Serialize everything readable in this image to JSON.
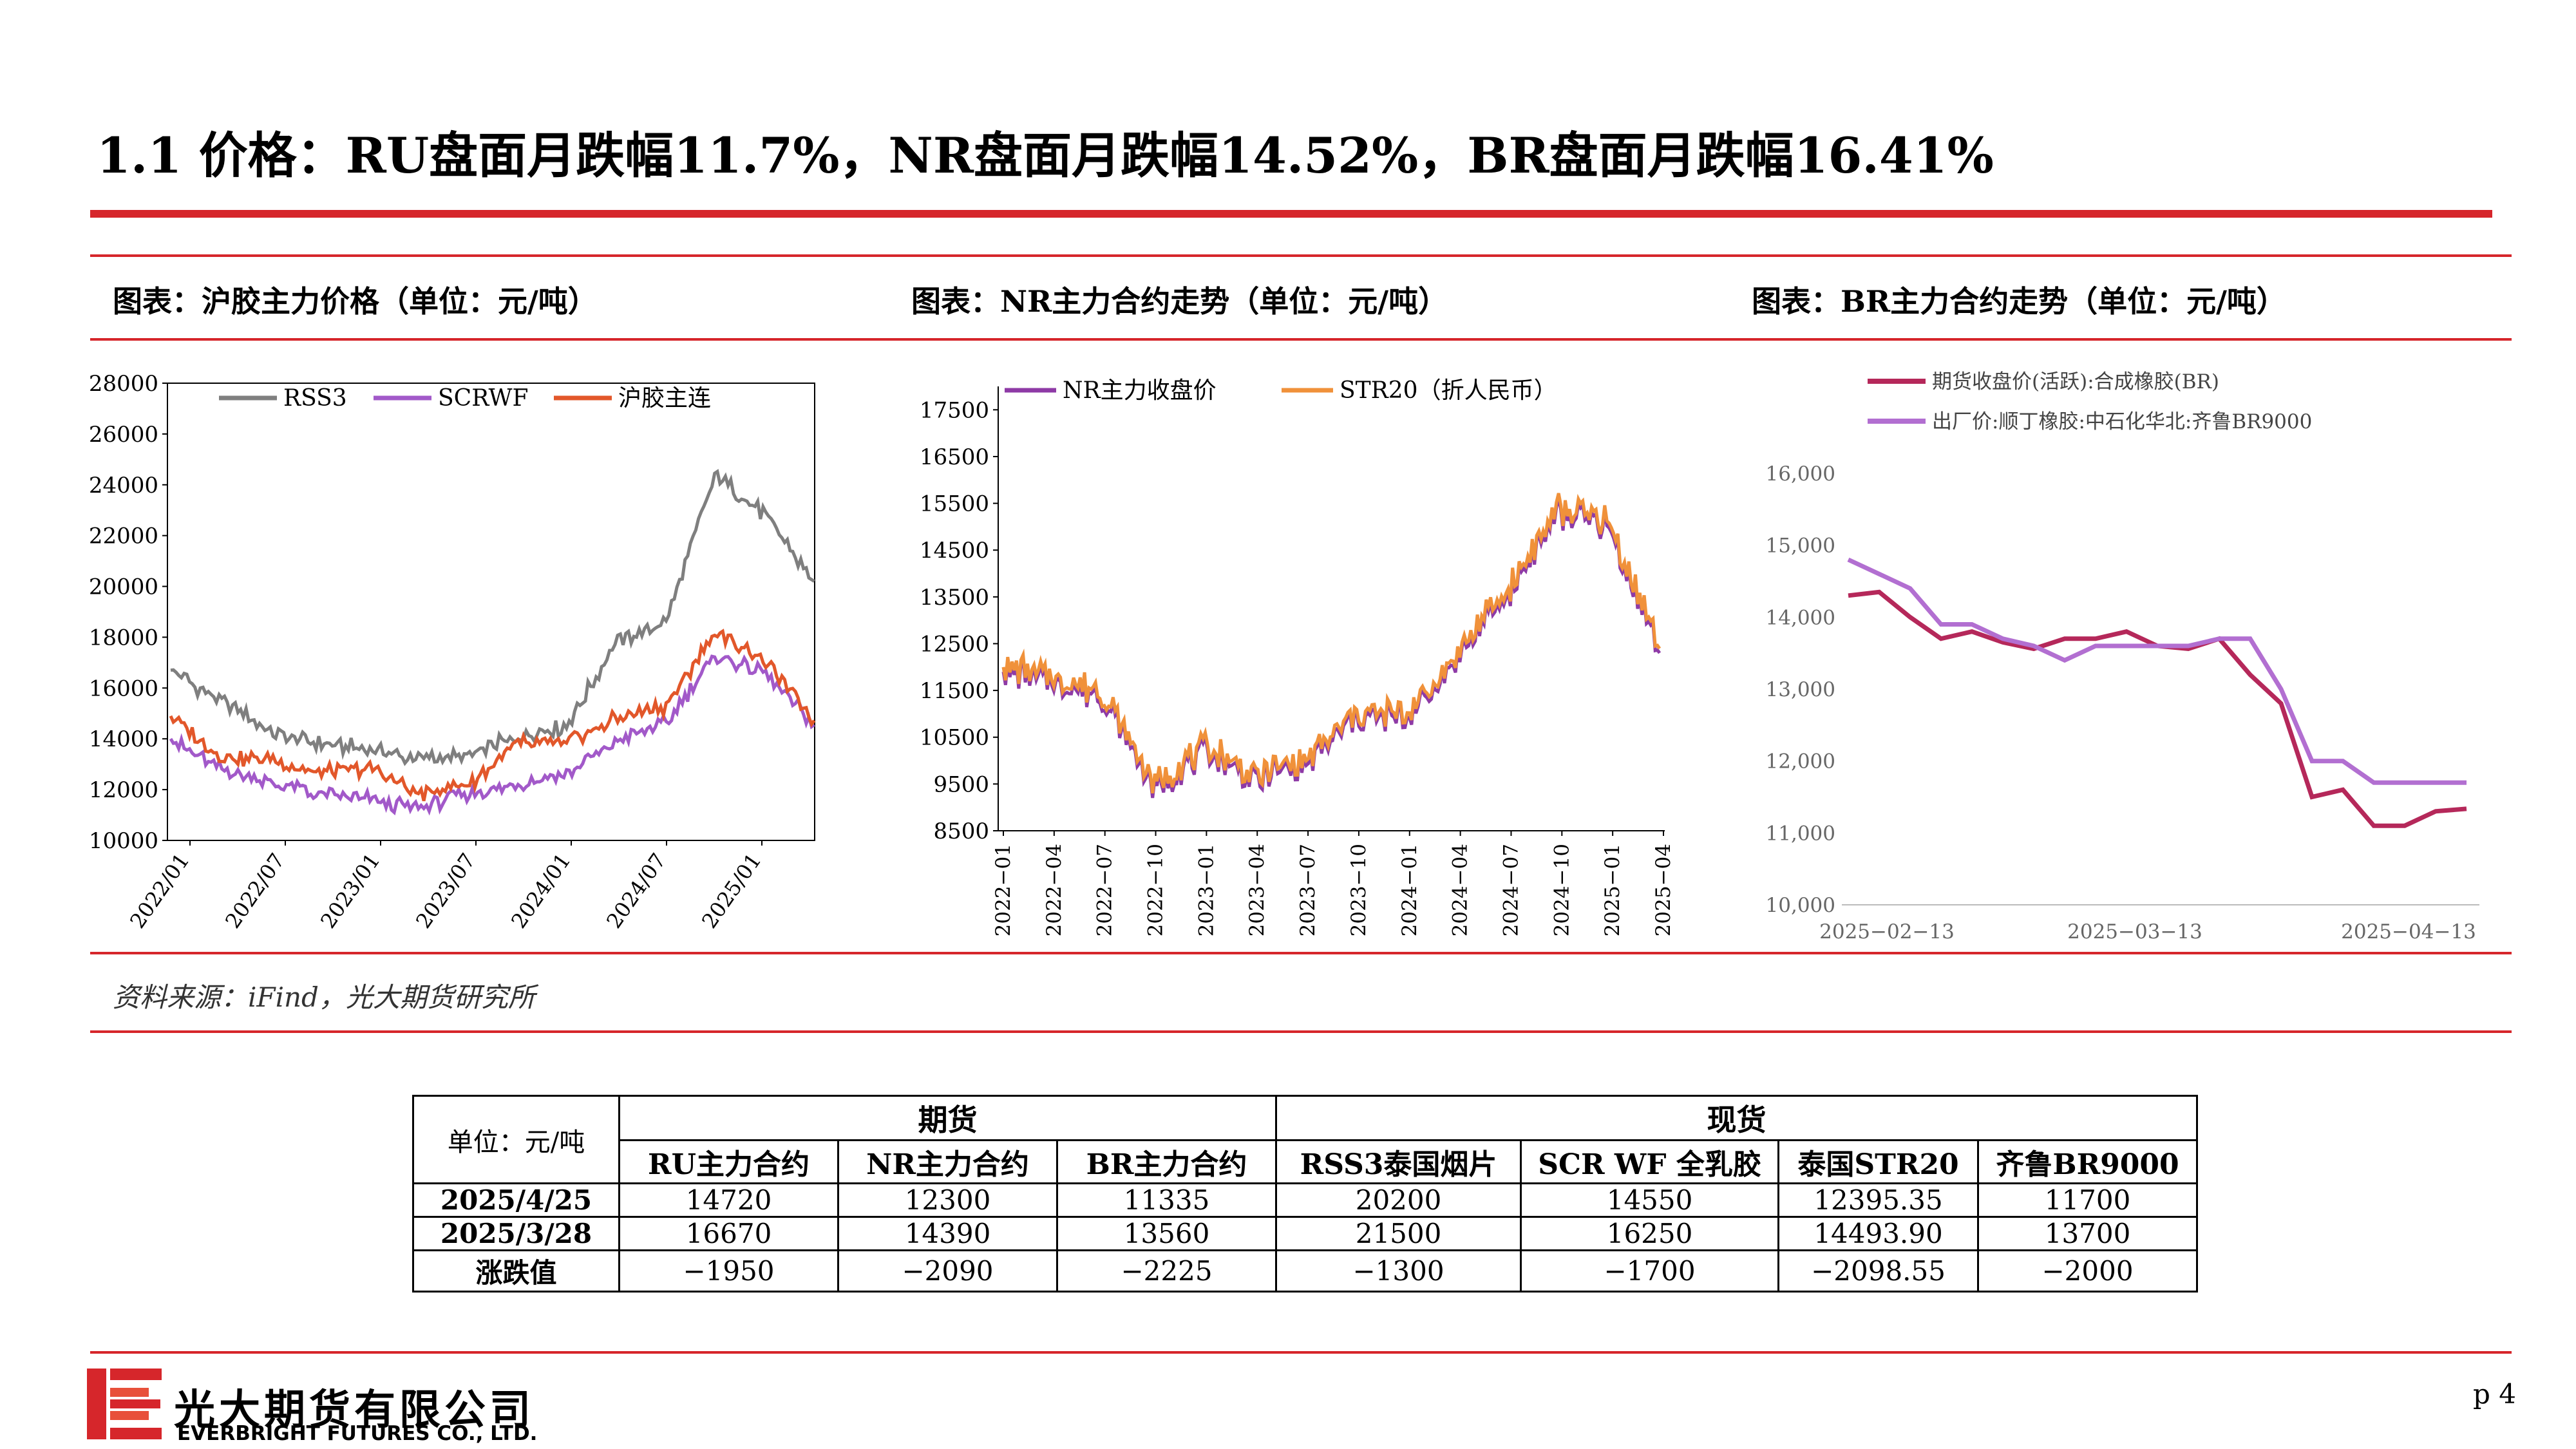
{
  "title": "1.1 价格：RU盘面月跌幅11.7%，NR盘面月跌幅14.52%，BR盘面月跌幅16.41%",
  "chart_titles": [
    "图表：沪胶主力价格（单位：元/吨）",
    "图表：NR主力合约走势（单位：元/吨）",
    "图表：BR主力合约走势（单位：元/吨）"
  ],
  "source": "资料来源：iFind，光大期货研究所",
  "colors": {
    "brand_red": "#d6262b",
    "rss3": "#7f7f7f",
    "scrwf": "#a259c9",
    "hujiao": "#e2572a",
    "nr": "#8e3aa6",
    "str20": "#f0913a",
    "br_future": "#b5285a",
    "br_factory": "#b26fd1"
  },
  "chart_data": [
    {
      "type": "line",
      "ylim": [
        10000,
        28000
      ],
      "yticks": [
        "10000",
        "12000",
        "14000",
        "16000",
        "18000",
        "20000",
        "22000",
        "24000",
        "26000",
        "28000"
      ],
      "xticks": [
        "2022/01",
        "2022/07",
        "2023/01",
        "2023/07",
        "2024/01",
        "2024/07",
        "2025/01"
      ],
      "x": [
        "2022/01",
        "2022/04",
        "2022/07",
        "2022/10",
        "2023/01",
        "2023/04",
        "2023/07",
        "2023/10",
        "2024/01",
        "2024/04",
        "2024/07",
        "2024/10",
        "2025/01",
        "2025/04"
      ],
      "series": [
        {
          "name": "RSS3",
          "values": [
            16700,
            15500,
            14300,
            13800,
            13600,
            13200,
            13300,
            14100,
            14500,
            17800,
            18600,
            24400,
            22800,
            20200
          ]
        },
        {
          "name": "SCRWF",
          "values": [
            14000,
            12800,
            12300,
            11800,
            11600,
            11300,
            11800,
            12200,
            12600,
            13900,
            14600,
            17300,
            16600,
            14550
          ]
        },
        {
          "name": "沪胶主连",
          "values": [
            14900,
            13300,
            13200,
            12600,
            12900,
            11800,
            12200,
            13800,
            13800,
            14800,
            15300,
            18200,
            17100,
            14720
          ]
        }
      ]
    },
    {
      "type": "line",
      "ylim": [
        8500,
        18000
      ],
      "yticks": [
        "8500",
        "9500",
        "10500",
        "11500",
        "12500",
        "13500",
        "14500",
        "15500",
        "16500",
        "17500"
      ],
      "xticks": [
        "2022−01",
        "2022−04",
        "2022−07",
        "2022−10",
        "2023−01",
        "2023−04",
        "2023−07",
        "2023−10",
        "2024−01",
        "2024−04",
        "2024−07",
        "2024−10",
        "2025−01",
        "2025−04"
      ],
      "series": [
        {
          "name": "NR主力收盘价",
          "values": [
            11900,
            11700,
            11300,
            9400,
            10200,
            9600,
            9900,
            10900,
            10900,
            12200,
            13600,
            15300,
            15000,
            12300
          ]
        },
        {
          "name": "STR20（折人民币）",
          "values": [
            12000,
            11800,
            11400,
            9500,
            10300,
            9700,
            10000,
            11000,
            11000,
            12300,
            13700,
            15400,
            15100,
            12395.35
          ]
        }
      ]
    },
    {
      "type": "line",
      "ylim": [
        10000,
        16000
      ],
      "yticks": [
        "10,000",
        "11,000",
        "12,000",
        "13,000",
        "14,000",
        "15,000",
        "16,000"
      ],
      "xticks": [
        "2025−02−13",
        "2025−03−13",
        "2025−04−13"
      ],
      "x": [
        "02-13",
        "02-17",
        "02-20",
        "02-24",
        "02-27",
        "03-03",
        "03-06",
        "03-10",
        "03-13",
        "03-17",
        "03-20",
        "03-24",
        "03-27",
        "03-31",
        "04-03",
        "04-07",
        "04-10",
        "04-14",
        "04-17",
        "04-21",
        "04-25"
      ],
      "series": [
        {
          "name": "期货收盘价(活跃):合成橡胶(BR)",
          "values": [
            14300,
            14350,
            14000,
            13700,
            13800,
            13650,
            13560,
            13700,
            13700,
            13800,
            13600,
            13560,
            13700,
            13200,
            12800,
            11500,
            11600,
            11100,
            11100,
            11300,
            11335
          ]
        },
        {
          "name": "出厂价:顺丁橡胶:中石化华北:齐鲁BR9000",
          "values": [
            14800,
            14600,
            14400,
            13900,
            13900,
            13700,
            13600,
            13400,
            13600,
            13600,
            13600,
            13600,
            13700,
            13700,
            13000,
            12000,
            12000,
            11700,
            11700,
            11700,
            11700
          ]
        }
      ]
    }
  ],
  "table": {
    "unit": "单位：元/吨",
    "group_futures": "期货",
    "group_spot": "现货",
    "columns": [
      "RU主力合约",
      "NR主力合约",
      "BR主力合约",
      "RSS3泰国烟片",
      "SCR WF 全乳胶",
      "泰国STR20",
      "齐鲁BR9000"
    ],
    "rows": [
      {
        "label": "2025/4/25",
        "cells": [
          "14720",
          "12300",
          "11335",
          "20200",
          "14550",
          "12395.35",
          "11700"
        ]
      },
      {
        "label": "2025/3/28",
        "cells": [
          "16670",
          "14390",
          "13560",
          "21500",
          "16250",
          "14493.90",
          "13700"
        ]
      },
      {
        "label": "涨跌值",
        "cells": [
          "−1950",
          "−2090",
          "−2225",
          "−1300",
          "−1700",
          "−2098.55",
          "−2000"
        ]
      }
    ]
  },
  "logo": {
    "cn": "光大期货有限公司",
    "en": "EVERBRIGHT FUTURES CO., LTD."
  },
  "page_number": "p 4"
}
